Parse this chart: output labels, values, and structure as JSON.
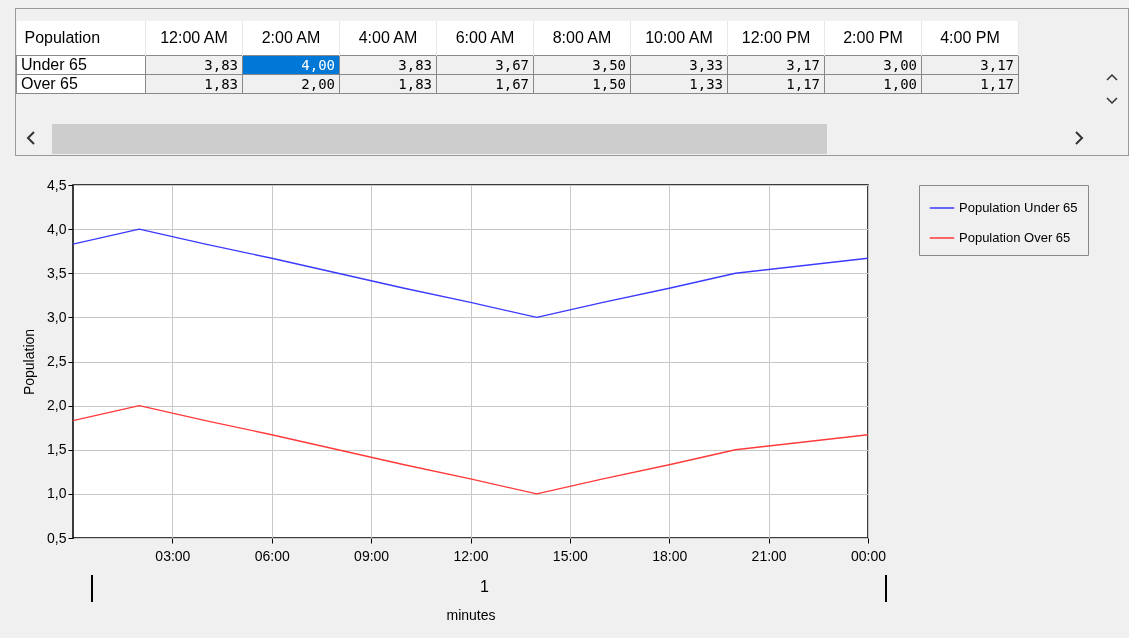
{
  "chart_data": [
    {
      "type": "heatmap",
      "title": "Population",
      "categories": [
        "12:00 AM",
        "2:00 AM",
        "4:00 AM",
        "6:00 AM",
        "8:00 AM",
        "10:00 AM",
        "12:00 PM",
        "2:00 PM",
        "4:00 PM"
      ],
      "y_categories": [
        "Under 65",
        "Over 65"
      ],
      "cells": [
        [
          3.83,
          4.0,
          3.83,
          3.67,
          3.5,
          3.33,
          3.17,
          3.0,
          3.17
        ],
        [
          1.83,
          2.0,
          1.83,
          1.67,
          1.5,
          1.33,
          1.17,
          1.0,
          1.17
        ]
      ],
      "cell_labels": [
        [
          "3,83",
          "4,00",
          "3,83",
          "3,67",
          "3,50",
          "3,33",
          "3,17",
          "3,00",
          "3,17"
        ],
        [
          "1,83",
          "2,00",
          "1,83",
          "1,67",
          "1,50",
          "1,33",
          "1,17",
          "1,00",
          "1,17"
        ]
      ]
    },
    {
      "type": "line",
      "xlabel": "minutes",
      "ylabel": "Population",
      "x": [
        0,
        2,
        4,
        6,
        8,
        10,
        12,
        14,
        16,
        18,
        20,
        24
      ],
      "series": [
        {
          "name": "Population Under 65",
          "color": "#3a3aff",
          "values": [
            3.83,
            4.0,
            3.83,
            3.67,
            3.5,
            3.33,
            3.17,
            3.0,
            3.17,
            3.33,
            3.5,
            3.67
          ]
        },
        {
          "name": "Population Over 65",
          "color": "#ff3a3a",
          "values": [
            1.83,
            2.0,
            1.83,
            1.67,
            1.5,
            1.33,
            1.17,
            1.0,
            1.17,
            1.33,
            1.5,
            1.67
          ]
        }
      ],
      "xlim": [
        0,
        24
      ],
      "xticks": [
        {
          "value": 3,
          "label": "03:00"
        },
        {
          "value": 6,
          "label": "06:00"
        },
        {
          "value": 9,
          "label": "09:00"
        },
        {
          "value": 12,
          "label": "12:00"
        },
        {
          "value": 15,
          "label": "15:00"
        },
        {
          "value": 18,
          "label": "18:00"
        },
        {
          "value": 21,
          "label": "21:00"
        },
        {
          "value": 24,
          "label": "00:00"
        }
      ],
      "ylim": [
        0.5,
        4.5
      ],
      "yticks": [
        {
          "value": 0.5,
          "label": "0,5"
        },
        {
          "value": 1.0,
          "label": "1,0"
        },
        {
          "value": 1.5,
          "label": "1,5"
        },
        {
          "value": 2.0,
          "label": "2,0"
        },
        {
          "value": 2.5,
          "label": "2,5"
        },
        {
          "value": 3.0,
          "label": "3,0"
        },
        {
          "value": 3.5,
          "label": "3,5"
        },
        {
          "value": 4.0,
          "label": "4,0"
        },
        {
          "value": 4.5,
          "label": "4,5"
        }
      ],
      "annotations": [
        "1"
      ],
      "grid": true,
      "legend": "right",
      "marker": "none",
      "line_style": "solid"
    }
  ]
}
